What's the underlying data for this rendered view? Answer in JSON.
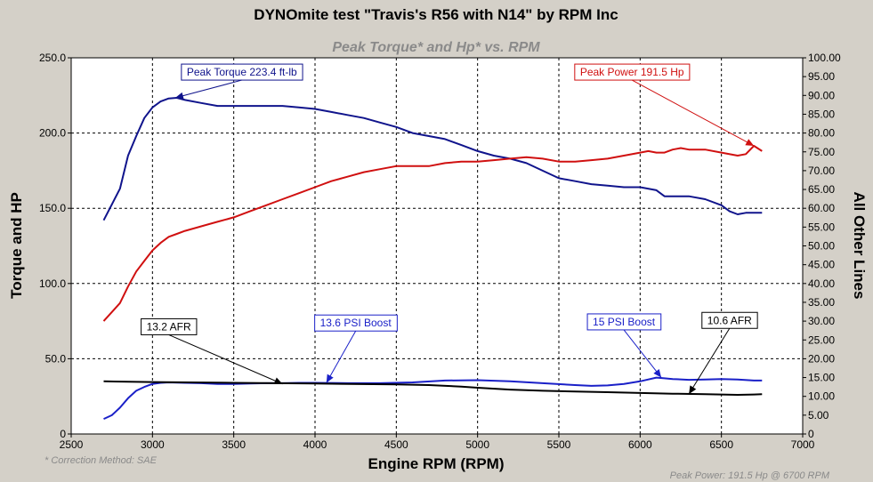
{
  "chart_data": {
    "type": "line",
    "title": "DYNOmite test \"Travis's R56 with N14\" by RPM Inc",
    "subtitle": "Peak Torque* and Hp* vs. RPM",
    "xlabel": "Engine RPM (RPM)",
    "ylabel": "Torque and HP",
    "y2label": "All Other Lines",
    "xlim": [
      2500,
      7000
    ],
    "ylim": [
      0,
      250
    ],
    "y2lim": [
      0,
      100
    ],
    "x_ticks": [
      2500,
      3000,
      3500,
      4000,
      4500,
      5000,
      5500,
      6000,
      6500,
      7000
    ],
    "y_ticks": [
      "0",
      "50.0",
      "100.0",
      "150.0",
      "200.0",
      "250.0"
    ],
    "y2_ticks": [
      "0",
      "5.00",
      "10.00",
      "15.00",
      "20.00",
      "25.00",
      "30.00",
      "35.00",
      "40.00",
      "45.00",
      "50.00",
      "55.00",
      "60.00",
      "65.00",
      "70.00",
      "75.00",
      "80.00",
      "85.00",
      "90.00",
      "95.00",
      "100.00"
    ],
    "grid": true,
    "series": [
      {
        "axis": "left",
        "color": "#10148c",
        "x": [
          2700,
          2800,
          2850,
          2900,
          2950,
          3000,
          3050,
          3100,
          3150,
          3200,
          3300,
          3400,
          3500,
          3600,
          3700,
          3800,
          3900,
          4000,
          4100,
          4200,
          4300,
          4400,
          4500,
          4600,
          4700,
          4800,
          4900,
          5000,
          5100,
          5200,
          5300,
          5400,
          5500,
          5600,
          5700,
          5800,
          5900,
          6000,
          6100,
          6150,
          6200,
          6300,
          6400,
          6500,
          6550,
          6600,
          6650,
          6700,
          6750
        ],
        "values": [
          142,
          163,
          185,
          198,
          210,
          217,
          221,
          223,
          223.4,
          222,
          220,
          218,
          218,
          218,
          218,
          218,
          217,
          216,
          214,
          212,
          210,
          207,
          204,
          200,
          198,
          196,
          192,
          188,
          185,
          183,
          180,
          175,
          170,
          168,
          166,
          165,
          164,
          164,
          162,
          158,
          158,
          158,
          156,
          152,
          148,
          146,
          147,
          147,
          147
        ]
      },
      {
        "axis": "left",
        "color": "#d01010",
        "x": [
          2700,
          2800,
          2850,
          2900,
          2950,
          3000,
          3050,
          3100,
          3150,
          3200,
          3300,
          3400,
          3500,
          3600,
          3700,
          3800,
          3900,
          4000,
          4100,
          4200,
          4300,
          4400,
          4500,
          4600,
          4700,
          4800,
          4900,
          5000,
          5100,
          5200,
          5300,
          5400,
          5500,
          5600,
          5700,
          5800,
          5900,
          6000,
          6050,
          6100,
          6150,
          6200,
          6250,
          6300,
          6400,
          6500,
          6600,
          6650,
          6700,
          6750
        ],
        "values": [
          75,
          87,
          98,
          108,
          115,
          122,
          127,
          131,
          133,
          135,
          138,
          141,
          144,
          148,
          152,
          156,
          160,
          164,
          168,
          171,
          174,
          176,
          178,
          178,
          178,
          180,
          181,
          181,
          182,
          183,
          184,
          183,
          181,
          181,
          182,
          183,
          185,
          187,
          188,
          187,
          187,
          189,
          190,
          189,
          189,
          187,
          185,
          186,
          191.5,
          188
        ]
      },
      {
        "axis": "right",
        "color": "#1a20c8",
        "x": [
          2700,
          2750,
          2800,
          2850,
          2900,
          2950,
          3000,
          3050,
          3100,
          3200,
          3300,
          3400,
          3500,
          3600,
          3700,
          3800,
          3900,
          4000,
          4200,
          4400,
          4600,
          4800,
          5000,
          5200,
          5400,
          5600,
          5700,
          5800,
          5900,
          6000,
          6050,
          6100,
          6150,
          6200,
          6300,
          6400,
          6500,
          6600,
          6700,
          6750
        ],
        "values": [
          4,
          5,
          7,
          9.5,
          11.5,
          12.5,
          13.3,
          13.6,
          13.7,
          13.6,
          13.5,
          13.3,
          13.3,
          13.4,
          13.5,
          13.5,
          13.6,
          13.6,
          13.5,
          13.5,
          13.7,
          14.2,
          14.3,
          14,
          13.5,
          13,
          12.8,
          12.9,
          13.3,
          14,
          14.5,
          15,
          14.8,
          14.6,
          14.4,
          14.5,
          14.6,
          14.5,
          14.2,
          14.2
        ]
      },
      {
        "axis": "right",
        "color": "#000000",
        "x": [
          2700,
          3000,
          3500,
          4000,
          4500,
          4700,
          4900,
          5000,
          5200,
          5400,
          5600,
          5800,
          6000,
          6200,
          6400,
          6600,
          6700,
          6750
        ],
        "values": [
          14,
          13.8,
          13.6,
          13.4,
          13.2,
          13,
          12.6,
          12.3,
          11.8,
          11.5,
          11.3,
          11.1,
          10.9,
          10.7,
          10.6,
          10.4,
          10.5,
          10.6
        ]
      }
    ],
    "annotations": [
      {
        "text": "Peak Torque  223.4 ft-lb",
        "color": "#10148c",
        "axis": "left",
        "tx": 3550,
        "ty": 240.5,
        "ax": 3140,
        "ay": 223.4
      },
      {
        "text": "Peak Power  191.5 Hp",
        "color": "#d01010",
        "axis": "left",
        "tx": 5950,
        "ty": 240.5,
        "ax": 6700,
        "ay": 191.5
      },
      {
        "text": "13.2 AFR",
        "color": "#000000",
        "axis": "right",
        "tx": 3100,
        "ty": 28.5,
        "ax": 3800,
        "ay": 13.3
      },
      {
        "text": "13.6 PSI Boost",
        "color": "#1a20c8",
        "axis": "right",
        "tx": 4250,
        "ty": 29.5,
        "ax": 4070,
        "ay": 13.6
      },
      {
        "text": "15 PSI Boost",
        "color": "#1a20c8",
        "axis": "right",
        "tx": 5900,
        "ty": 29.8,
        "ax": 6130,
        "ay": 15
      },
      {
        "text": "10.6 AFR",
        "color": "#000000",
        "axis": "right",
        "tx": 6550,
        "ty": 30.2,
        "ax": 6300,
        "ay": 10.6
      }
    ],
    "footnote_left": "* Correction Method: SAE",
    "footnote_right": "Peak Power: 191.5 Hp @ 6700 RPM"
  }
}
